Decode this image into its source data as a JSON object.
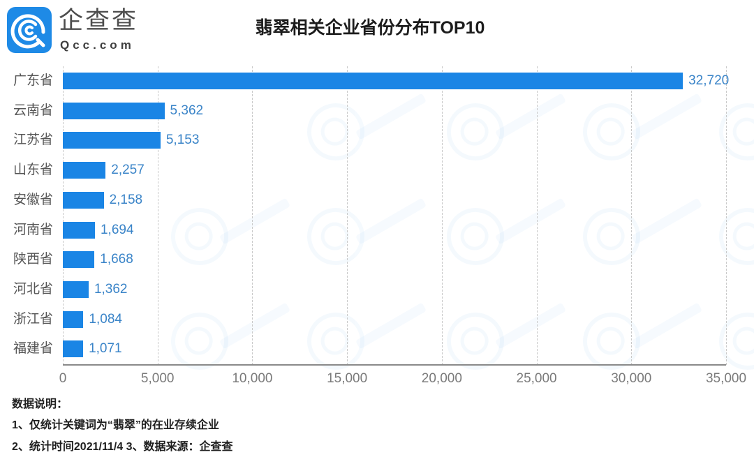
{
  "header": {
    "logo_cn": "企查查",
    "logo_en": "Qcc.com",
    "title": "翡翠相关企业省份分布TOP10"
  },
  "colors": {
    "bar": "#1a85e5",
    "value_label": "#3a84c8",
    "logo_blue": "#1e8ae6",
    "axis": "#8a8a8a",
    "grid": "#c9c9c9"
  },
  "chart_data": {
    "type": "bar",
    "orientation": "horizontal",
    "title": "翡翠相关企业省份分布TOP10",
    "categories": [
      "广东省",
      "云南省",
      "江苏省",
      "山东省",
      "安徽省",
      "河南省",
      "陕西省",
      "河北省",
      "浙江省",
      "福建省"
    ],
    "values": [
      32720,
      5362,
      5153,
      2257,
      2158,
      1694,
      1668,
      1362,
      1084,
      1071
    ],
    "value_labels": [
      "32,720",
      "5,362",
      "5,153",
      "2,257",
      "2,158",
      "1,694",
      "1,668",
      "1,362",
      "1,084",
      "1,071"
    ],
    "xlabel": "",
    "ylabel": "",
    "xlim": [
      0,
      35000
    ],
    "xticks": [
      0,
      5000,
      10000,
      15000,
      20000,
      25000,
      30000,
      35000
    ],
    "xtick_labels": [
      "0",
      "5,000",
      "10,000",
      "15,000",
      "20,000",
      "25,000",
      "30,000",
      "35,000"
    ],
    "grid": "vertical dashed",
    "legend": "none",
    "data_labels": true
  },
  "notes": {
    "heading": "数据说明：",
    "line1": "1、仅统计关键词为“翡翠”的在业存续企业",
    "line2": "2、统计时间2021/11/4  3、数据来源：企查查"
  }
}
